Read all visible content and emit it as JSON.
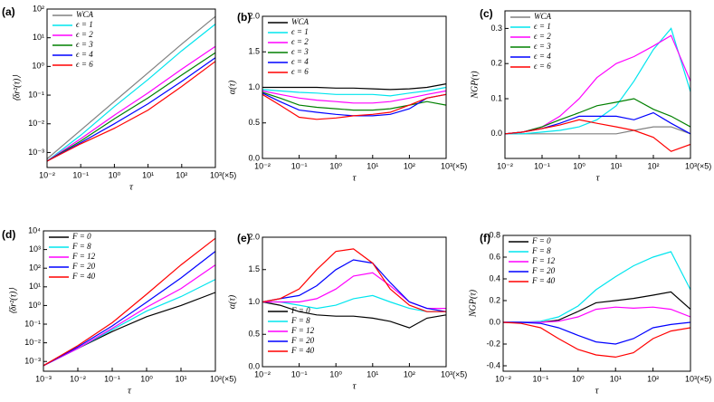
{
  "chart_data": [
    {
      "type": "line",
      "panel_label": "(a)",
      "ylabel": "⟨δr²(τ)⟩",
      "xlabel": "τ",
      "xlog": true,
      "ylog": true,
      "legend": "upper left",
      "x": [
        0.01,
        0.1,
        1,
        10,
        100,
        1000
      ],
      "xlim": [
        0.01,
        1000
      ],
      "ylim": [
        0.0003,
        100
      ],
      "xticks": [
        {
          "value": 0.01,
          "label": "10⁻²"
        },
        {
          "value": 0.1,
          "label": "10⁻¹"
        },
        {
          "value": 1,
          "label": "10⁰"
        },
        {
          "value": 10,
          "label": "10¹"
        },
        {
          "value": 100,
          "label": "10²"
        },
        {
          "value": 1000,
          "label": "10³(×5)"
        }
      ],
      "yticks": [
        {
          "value": 0.001,
          "label": "10⁻³"
        },
        {
          "value": 0.01,
          "label": "10⁻²"
        },
        {
          "value": 0.1,
          "label": "10⁻¹"
        },
        {
          "value": 1,
          "label": "10⁰"
        },
        {
          "value": 10,
          "label": "10¹"
        },
        {
          "value": 100,
          "label": "10²"
        }
      ],
      "series": [
        {
          "name": "WCA",
          "color": "#808080",
          "values": [
            0.0006,
            0.006,
            0.06,
            0.6,
            6,
            55
          ]
        },
        {
          "name": "ϵ = 1",
          "color": "#00e5ee",
          "values": [
            0.0005,
            0.004,
            0.04,
            0.35,
            3.5,
            30
          ]
        },
        {
          "name": "ϵ = 2",
          "color": "#ff00ff",
          "values": [
            0.0005,
            0.003,
            0.02,
            0.12,
            0.8,
            5
          ]
        },
        {
          "name": "ϵ = 3",
          "color": "#008000",
          "values": [
            0.0005,
            0.0025,
            0.015,
            0.08,
            0.5,
            3
          ]
        },
        {
          "name": "ϵ = 4",
          "color": "#0000ff",
          "values": [
            0.0005,
            0.0022,
            0.01,
            0.05,
            0.3,
            2
          ]
        },
        {
          "name": "ϵ = 6",
          "color": "#ff0000",
          "values": [
            0.0005,
            0.002,
            0.007,
            0.03,
            0.2,
            1.5
          ]
        }
      ]
    },
    {
      "type": "line",
      "panel_label": "(b)",
      "ylabel": "α(τ)",
      "xlabel": "τ",
      "xlog": true,
      "ylog": false,
      "legend": "upper left",
      "x": [
        0.01,
        0.03,
        0.1,
        0.3,
        1,
        3,
        10,
        30,
        100,
        300,
        1000
      ],
      "xlim": [
        0.01,
        1000
      ],
      "ylim": [
        0,
        2
      ],
      "xticks": [
        {
          "value": 0.01,
          "label": "10⁻²"
        },
        {
          "value": 0.1,
          "label": "10⁻¹"
        },
        {
          "value": 1,
          "label": "10⁰"
        },
        {
          "value": 10,
          "label": "10¹"
        },
        {
          "value": 100,
          "label": "10²"
        },
        {
          "value": 1000,
          "label": "10³(×5)"
        }
      ],
      "yticks": [
        {
          "value": 0,
          "label": "0.0"
        },
        0.5,
        {
          "value": 1,
          "label": "1.0"
        },
        1.5,
        {
          "value": 2,
          "label": "2.0"
        }
      ],
      "series": [
        {
          "name": "WCA",
          "color": "#000000",
          "values": [
            1,
            1,
            1,
            1,
            0.99,
            0.99,
            0.98,
            0.97,
            0.98,
            1.0,
            1.05
          ]
        },
        {
          "name": "ϵ = 1",
          "color": "#00e5ee",
          "values": [
            0.97,
            0.95,
            0.93,
            0.92,
            0.9,
            0.9,
            0.9,
            0.88,
            0.92,
            0.95,
            1.0
          ]
        },
        {
          "name": "ϵ = 2",
          "color": "#ff00ff",
          "values": [
            0.95,
            0.9,
            0.85,
            0.82,
            0.8,
            0.78,
            0.78,
            0.8,
            0.85,
            0.9,
            0.95
          ]
        },
        {
          "name": "ϵ = 3",
          "color": "#008000",
          "values": [
            0.93,
            0.85,
            0.75,
            0.72,
            0.7,
            0.68,
            0.68,
            0.7,
            0.75,
            0.8,
            0.75
          ]
        },
        {
          "name": "ϵ = 4",
          "color": "#0000ff",
          "values": [
            0.92,
            0.8,
            0.68,
            0.65,
            0.62,
            0.6,
            0.6,
            0.62,
            0.7,
            0.85,
            0.9
          ]
        },
        {
          "name": "ϵ = 6",
          "color": "#ff0000",
          "values": [
            0.9,
            0.75,
            0.58,
            0.55,
            0.57,
            0.6,
            0.62,
            0.65,
            0.75,
            0.85,
            0.9
          ]
        }
      ]
    },
    {
      "type": "line",
      "panel_label": "(c)",
      "ylabel": "NGP(τ)",
      "xlabel": "τ",
      "xlog": true,
      "ylog": false,
      "legend": "upper left",
      "x": [
        0.01,
        0.03,
        0.1,
        0.3,
        1,
        3,
        10,
        30,
        100,
        300,
        1000
      ],
      "xlim": [
        0.01,
        1000
      ],
      "ylim": [
        -0.07,
        0.35
      ],
      "xticks": [
        {
          "value": 0.01,
          "label": "10⁻²"
        },
        {
          "value": 0.1,
          "label": "10⁻¹"
        },
        {
          "value": 1,
          "label": "10⁰"
        },
        {
          "value": 10,
          "label": "10¹"
        },
        {
          "value": 100,
          "label": "10²"
        },
        {
          "value": 1000,
          "label": "10³(×5)"
        }
      ],
      "yticks": [
        {
          "value": 0,
          "label": "0.0"
        },
        0.1,
        0.2,
        0.3
      ],
      "series": [
        {
          "name": "WCA",
          "color": "#808080",
          "values": [
            0,
            0,
            0,
            0,
            0,
            0,
            0,
            0.01,
            0.02,
            0.02,
            0
          ]
        },
        {
          "name": "ϵ = 1",
          "color": "#00e5ee",
          "values": [
            0,
            0,
            0.005,
            0.01,
            0.02,
            0.04,
            0.08,
            0.15,
            0.24,
            0.3,
            0.12
          ]
        },
        {
          "name": "ϵ = 2",
          "color": "#ff00ff",
          "values": [
            0,
            0.005,
            0.02,
            0.05,
            0.1,
            0.16,
            0.2,
            0.22,
            0.25,
            0.28,
            0.15
          ]
        },
        {
          "name": "ϵ = 3",
          "color": "#008000",
          "values": [
            0,
            0.005,
            0.02,
            0.04,
            0.06,
            0.08,
            0.09,
            0.1,
            0.07,
            0.05,
            0.02
          ]
        },
        {
          "name": "ϵ = 4",
          "color": "#0000ff",
          "values": [
            0,
            0.005,
            0.015,
            0.03,
            0.05,
            0.05,
            0.05,
            0.04,
            0.06,
            0.03,
            0
          ]
        },
        {
          "name": "ϵ = 6",
          "color": "#ff0000",
          "values": [
            0,
            0.005,
            0.015,
            0.025,
            0.04,
            0.03,
            0.02,
            0.01,
            -0.01,
            -0.05,
            -0.03
          ]
        }
      ]
    },
    {
      "type": "line",
      "panel_label": "(d)",
      "ylabel": "⟨δr²(τ)⟩",
      "xlabel": "τ",
      "xlog": true,
      "ylog": true,
      "legend": "upper left",
      "x": [
        0.001,
        0.01,
        0.1,
        1,
        10,
        100
      ],
      "xlim": [
        0.001,
        100
      ],
      "ylim": [
        0.0003,
        10000
      ],
      "xticks": [
        {
          "value": 0.001,
          "label": "10⁻³"
        },
        {
          "value": 0.01,
          "label": "10⁻²"
        },
        {
          "value": 0.1,
          "label": "10⁻¹"
        },
        {
          "value": 1,
          "label": "10⁰"
        },
        {
          "value": 10,
          "label": "10¹"
        },
        {
          "value": 100,
          "label": "10²(×5)"
        }
      ],
      "yticks": [
        {
          "value": 0.001,
          "label": "10⁻³"
        },
        {
          "value": 0.01,
          "label": "10⁻²"
        },
        {
          "value": 0.1,
          "label": "10⁻¹"
        },
        {
          "value": 1,
          "label": "10⁰"
        },
        {
          "value": 10,
          "label": "10¹"
        },
        {
          "value": 100,
          "label": "10²"
        },
        {
          "value": 1000,
          "label": "10³"
        },
        {
          "value": 10000,
          "label": "10⁴"
        }
      ],
      "series": [
        {
          "name": "F = 0",
          "color": "#000000",
          "values": [
            0.0006,
            0.005,
            0.04,
            0.25,
            1,
            5
          ]
        },
        {
          "name": "F = 8",
          "color": "#00e5ee",
          "values": [
            0.0006,
            0.005,
            0.05,
            0.5,
            3,
            25
          ]
        },
        {
          "name": "F = 12",
          "color": "#ff00ff",
          "values": [
            0.0006,
            0.005,
            0.06,
            0.8,
            8,
            150
          ]
        },
        {
          "name": "F = 20",
          "color": "#0000ff",
          "values": [
            0.0006,
            0.006,
            0.08,
            1.5,
            30,
            800
          ]
        },
        {
          "name": "F = 40",
          "color": "#ff0000",
          "values": [
            0.0006,
            0.007,
            0.12,
            4,
            150,
            4000
          ]
        }
      ]
    },
    {
      "type": "line",
      "panel_label": "(e)",
      "ylabel": "α(τ)",
      "xlabel": "τ",
      "xlog": true,
      "ylog": false,
      "legend": "lower left",
      "x": [
        0.01,
        0.03,
        0.1,
        0.3,
        1,
        3,
        10,
        30,
        100,
        300,
        1000
      ],
      "xlim": [
        0.01,
        1000
      ],
      "ylim": [
        0,
        2
      ],
      "xticks": [
        {
          "value": 0.01,
          "label": "10⁻²"
        },
        {
          "value": 0.1,
          "label": "10⁻¹"
        },
        {
          "value": 1,
          "label": "10⁰"
        },
        {
          "value": 10,
          "label": "10¹"
        },
        {
          "value": 100,
          "label": "10²"
        },
        {
          "value": 1000,
          "label": "10³(×5)"
        }
      ],
      "yticks": [
        {
          "value": 0,
          "label": "0.0"
        },
        0.5,
        {
          "value": 1,
          "label": "1.0"
        },
        1.5,
        {
          "value": 2,
          "label": "2.0"
        }
      ],
      "series": [
        {
          "name": "F = 0",
          "color": "#000000",
          "values": [
            1,
            0.95,
            0.85,
            0.8,
            0.78,
            0.78,
            0.75,
            0.7,
            0.6,
            0.75,
            0.8
          ]
        },
        {
          "name": "F = 8",
          "color": "#00e5ee",
          "values": [
            1,
            1,
            0.95,
            0.9,
            0.95,
            1.05,
            1.1,
            1.0,
            0.9,
            0.85,
            0.85
          ]
        },
        {
          "name": "F = 12",
          "color": "#ff00ff",
          "values": [
            1,
            1,
            1.0,
            1.05,
            1.2,
            1.4,
            1.45,
            1.25,
            1.0,
            0.9,
            0.9
          ]
        },
        {
          "name": "F = 20",
          "color": "#0000ff",
          "values": [
            1,
            1.05,
            1.1,
            1.25,
            1.5,
            1.65,
            1.6,
            1.3,
            1.0,
            0.9,
            0.85
          ]
        },
        {
          "name": "F = 40",
          "color": "#ff0000",
          "values": [
            1,
            1.05,
            1.2,
            1.5,
            1.78,
            1.82,
            1.6,
            1.2,
            0.95,
            0.85,
            0.85
          ]
        }
      ]
    },
    {
      "type": "line",
      "panel_label": "(f)",
      "ylabel": "NGP(τ)",
      "xlabel": "τ",
      "xlog": true,
      "ylog": false,
      "legend": "upper left",
      "x": [
        0.01,
        0.03,
        0.1,
        0.3,
        1,
        3,
        10,
        30,
        100,
        300,
        1000
      ],
      "xlim": [
        0.01,
        1000
      ],
      "ylim": [
        -0.45,
        0.8
      ],
      "xticks": [
        {
          "value": 0.01,
          "label": "10⁻²"
        },
        {
          "value": 0.1,
          "label": "10⁻¹"
        },
        {
          "value": 1,
          "label": "10⁰"
        },
        {
          "value": 10,
          "label": "10¹"
        },
        {
          "value": 100,
          "label": "10²"
        },
        {
          "value": 1000,
          "label": "10³(×5)"
        }
      ],
      "yticks": [
        -0.4,
        -0.2,
        {
          "value": 0,
          "label": "0.0"
        },
        0.2,
        0.4,
        0.6,
        0.8
      ],
      "series": [
        {
          "name": "F = 0",
          "color": "#000000",
          "values": [
            0,
            0,
            0,
            0.02,
            0.1,
            0.18,
            0.2,
            0.22,
            0.25,
            0.28,
            0.12
          ]
        },
        {
          "name": "F = 8",
          "color": "#00e5ee",
          "values": [
            0,
            0,
            0.01,
            0.05,
            0.15,
            0.3,
            0.42,
            0.52,
            0.6,
            0.65,
            0.3
          ]
        },
        {
          "name": "F = 12",
          "color": "#ff00ff",
          "values": [
            0,
            0,
            0,
            0.01,
            0.05,
            0.12,
            0.14,
            0.13,
            0.14,
            0.12,
            0.05
          ]
        },
        {
          "name": "F = 20",
          "color": "#0000ff",
          "values": [
            0,
            0,
            -0.01,
            -0.05,
            -0.12,
            -0.18,
            -0.2,
            -0.15,
            -0.05,
            -0.02,
            0
          ]
        },
        {
          "name": "F = 40",
          "color": "#ff0000",
          "values": [
            0,
            -0.01,
            -0.05,
            -0.15,
            -0.25,
            -0.3,
            -0.32,
            -0.28,
            -0.15,
            -0.08,
            -0.05
          ]
        }
      ]
    }
  ]
}
